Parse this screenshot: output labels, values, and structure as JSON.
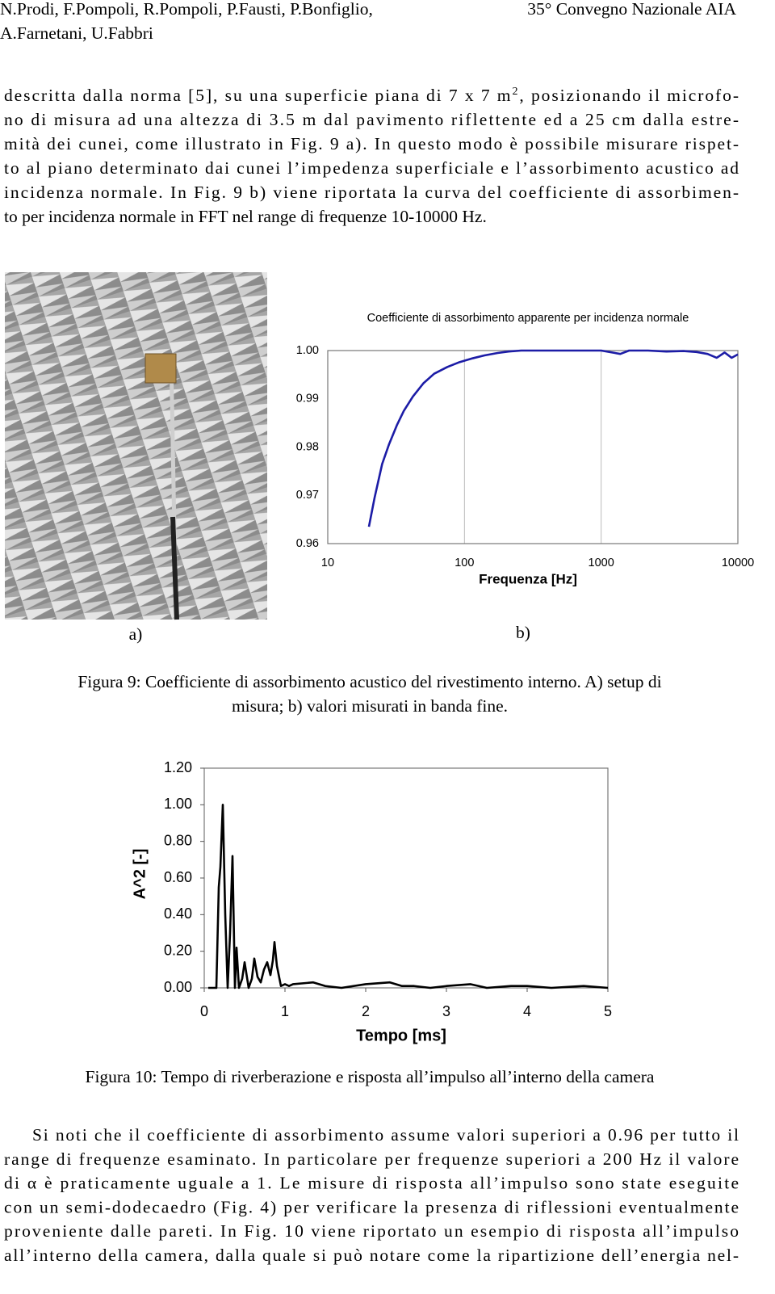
{
  "header": {
    "authors": [
      "N.Prodi, F.Pompoli, R.Pompoli, P.Fausti, P.Bonfiglio,",
      "A.Farnetani, U.Fabbri"
    ],
    "conference": "35° Convegno Nazionale AIA"
  },
  "paragraph_1": [
    {
      "text": "descritta dalla norma [5], su una superficie piana di 7 x 7 m",
      "superscript": "2",
      "rest": ", posizionando il microfo-"
    },
    "no di misura ad una altezza di 3.5 m  dal pavimento riflettente ed a 25 cm dalla estre-",
    "mità dei cunei, come illustrato in Fig. 9 a). In questo modo è possibile misurare rispet-",
    "to al piano determinato dai cunei l’impedenza superficiale e l’assorbimento acustico ad",
    "incidenza normale. In Fig. 9 b) viene riportata la curva del coefficiente di assorbimen-",
    "to per incidenza normale in FFT nel range di frequenze 10-10000 Hz."
  ],
  "figure_9": {
    "panel_a_label": "a)",
    "panel_b_label": "b)",
    "caption": [
      "Figura 9: Coefficiente di assorbimento acustico del rivestimento interno. A) setup di",
      "misura; b) valori misurati in banda fine."
    ]
  },
  "figure_10": {
    "caption": "Figura 10: Tempo di riverberazione e risposta all’impulso all’interno della camera"
  },
  "paragraph_2": [
    "Si noti che il coefficiente di assorbimento assume valori superiori a 0.96 per tutto il",
    "range di frequenze esaminato. In particolare per frequenze superiori a 200 Hz il valore",
    "di α è praticamente uguale a 1.  Le misure di risposta all’impulso sono state eseguite",
    "con un semi-dodecaedro (Fig. 4) per verificare la presenza di riflessioni eventualmente",
    "proveniente dalle pareti. In Fig. 10 viene riportato un esempio di risposta all’impulso",
    "all’interno della camera, dalla quale si può notare come la ripartizione dell’energia nel-"
  ],
  "chart_data": [
    {
      "type": "line",
      "title": "Coefficiente di assorbimento apparente per incidenza normale",
      "x_label": "Frequenza [Hz]",
      "x_scale": "log",
      "x": [
        20,
        22,
        25,
        28,
        32,
        36,
        42,
        50,
        60,
        75,
        92,
        115,
        140,
        175,
        210,
        260,
        350,
        500,
        700,
        1000,
        1380,
        1600,
        2200,
        3000,
        4000,
        5000,
        6000,
        7000,
        8000,
        9000,
        10000
      ],
      "values": [
        0.9635,
        0.9695,
        0.9765,
        0.9805,
        0.9845,
        0.9875,
        0.9905,
        0.9932,
        0.9952,
        0.9966,
        0.9976,
        0.9984,
        0.999,
        0.9995,
        0.9998,
        1.0,
        1.0,
        1.0,
        1.0,
        1.0,
        0.9993,
        1.0,
        1.0,
        0.9998,
        0.9999,
        0.9997,
        0.9993,
        0.9985,
        0.9996,
        0.9985,
        0.9992
      ],
      "color": "#1c1ca6",
      "xlim": [
        10,
        10000
      ],
      "xticks": [
        10,
        100,
        1000,
        10000
      ],
      "ylim": [
        0.96,
        1.0
      ],
      "yticks": [
        0.96,
        0.97,
        0.98,
        0.99,
        {
          "value": 1,
          "label": "1.00"
        }
      ],
      "x_grid": true
    },
    {
      "type": "line",
      "x_label": "Tempo [ms]",
      "y_label": "A^2 [-]",
      "x": [
        0.05,
        0.15,
        0.18,
        0.2,
        0.23,
        0.26,
        0.29,
        0.32,
        0.35,
        0.38,
        0.4,
        0.43,
        0.47,
        0.5,
        0.55,
        0.59,
        0.62,
        0.66,
        0.7,
        0.74,
        0.78,
        0.82,
        0.85,
        0.87,
        0.9,
        0.95,
        1.0,
        1.05,
        1.1,
        1.35,
        1.5,
        1.7,
        2.0,
        2.3,
        2.45,
        2.6,
        2.8,
        3.0,
        3.3,
        3.5,
        3.8,
        4.0,
        4.3,
        4.7,
        5.0
      ],
      "values": [
        0,
        0,
        0.55,
        0.66,
        1.0,
        0.4,
        0,
        0.3,
        0.72,
        0,
        0.22,
        0,
        0.05,
        0.14,
        0,
        0.05,
        0.16,
        0.06,
        0.03,
        0.1,
        0.14,
        0.07,
        0.15,
        0.25,
        0.12,
        0.01,
        0.02,
        0.01,
        0.02,
        0.03,
        0.01,
        0,
        0.02,
        0.03,
        0.01,
        0.01,
        0,
        0.01,
        0.02,
        0,
        0.01,
        0.01,
        0,
        0.01,
        0
      ],
      "color": "#000000",
      "xlim": [
        0,
        5
      ],
      "xticks": [
        0,
        1,
        2,
        3,
        4,
        5
      ],
      "ylim": [
        0,
        1.2
      ],
      "yticks": [
        {
          "value": 0,
          "label": "0.00"
        },
        {
          "value": 0.2,
          "label": "0.20"
        },
        {
          "value": 0.4,
          "label": "0.40"
        },
        {
          "value": 0.6,
          "label": "0.60"
        },
        {
          "value": 0.8,
          "label": "0.80"
        },
        {
          "value": 1,
          "label": "1.00"
        },
        {
          "value": 1.2,
          "label": "1.20"
        }
      ],
      "x_grid": false
    }
  ]
}
